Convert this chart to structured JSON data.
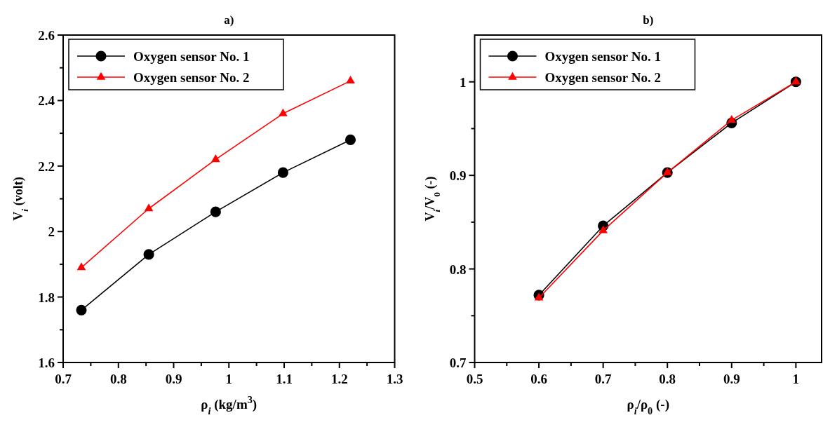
{
  "chart_data": [
    {
      "type": "line",
      "title": "a)",
      "xlabel": "ρ$_{i}$ (kg/m$^{3}$)",
      "ylabel": "V$_{i}$ (volt)",
      "x": [
        0.733,
        0.855,
        0.976,
        1.098,
        1.22
      ],
      "series": [
        {
          "name": "Oxygen sensor No. 1",
          "color": "#000000",
          "marker": "circle",
          "values": [
            1.76,
            1.93,
            2.06,
            2.18,
            2.28
          ]
        },
        {
          "name": "Oxygen sensor No. 2",
          "color": "#ff0000",
          "marker": "triangle",
          "values": [
            1.89,
            2.07,
            2.22,
            2.36,
            2.46
          ]
        }
      ],
      "xlim": [
        0.7,
        1.3
      ],
      "xticks": [
        0.7,
        {
          "value": 0.75,
          "label": null
        },
        0.8,
        {
          "value": 0.85,
          "label": null
        },
        0.9,
        {
          "value": 0.95,
          "label": null
        },
        1,
        {
          "value": 1.05,
          "label": null
        },
        1.1,
        {
          "value": 1.15,
          "label": null
        },
        1.2,
        {
          "value": 1.25,
          "label": null
        },
        1.3
      ],
      "ylim": [
        1.6,
        2.6
      ],
      "yticks": [
        1.6,
        {
          "value": 1.7,
          "label": null
        },
        1.8,
        {
          "value": 1.9,
          "label": null
        },
        2,
        {
          "value": 2.1,
          "label": null
        },
        2.2,
        {
          "value": 2.3,
          "label": null
        },
        2.4,
        {
          "value": 2.5,
          "label": null
        },
        2.6
      ],
      "legend": "top left",
      "grid": false,
      "line_style": "solid"
    },
    {
      "type": "line",
      "title": "b)",
      "xlabel": "ρ$_{i}$/ρ$_{0}$ (-)",
      "ylabel": "V$_{i}$/V$_{0}$ (-)",
      "x": [
        0.6,
        0.7,
        0.8,
        0.9,
        1
      ],
      "series": [
        {
          "name": "Oxygen sensor No. 1",
          "color": "#000000",
          "marker": "circle",
          "values": [
            0.772,
            0.846,
            0.903,
            0.956,
            1.0
          ]
        },
        {
          "name": "Oxygen sensor No. 2",
          "color": "#ff0000",
          "marker": "triangle",
          "values": [
            0.769,
            0.841,
            0.903,
            0.959,
            1.0
          ]
        }
      ],
      "xlim": [
        0.5,
        1.04
      ],
      "xticks": [
        0.5,
        {
          "value": 0.55,
          "label": null
        },
        0.6,
        {
          "value": 0.65,
          "label": null
        },
        0.7,
        {
          "value": 0.75,
          "label": null
        },
        0.8,
        {
          "value": 0.85,
          "label": null
        },
        0.9,
        {
          "value": 0.95,
          "label": null
        },
        1
      ],
      "ylim": [
        0.7,
        1.05
      ],
      "yticks": [
        0.7,
        {
          "value": 0.75,
          "label": null
        },
        0.8,
        {
          "value": 0.85,
          "label": null
        },
        0.9,
        {
          "value": 0.95,
          "label": null
        },
        1
      ],
      "legend": "top left",
      "grid": false,
      "line_style": "solid"
    }
  ]
}
